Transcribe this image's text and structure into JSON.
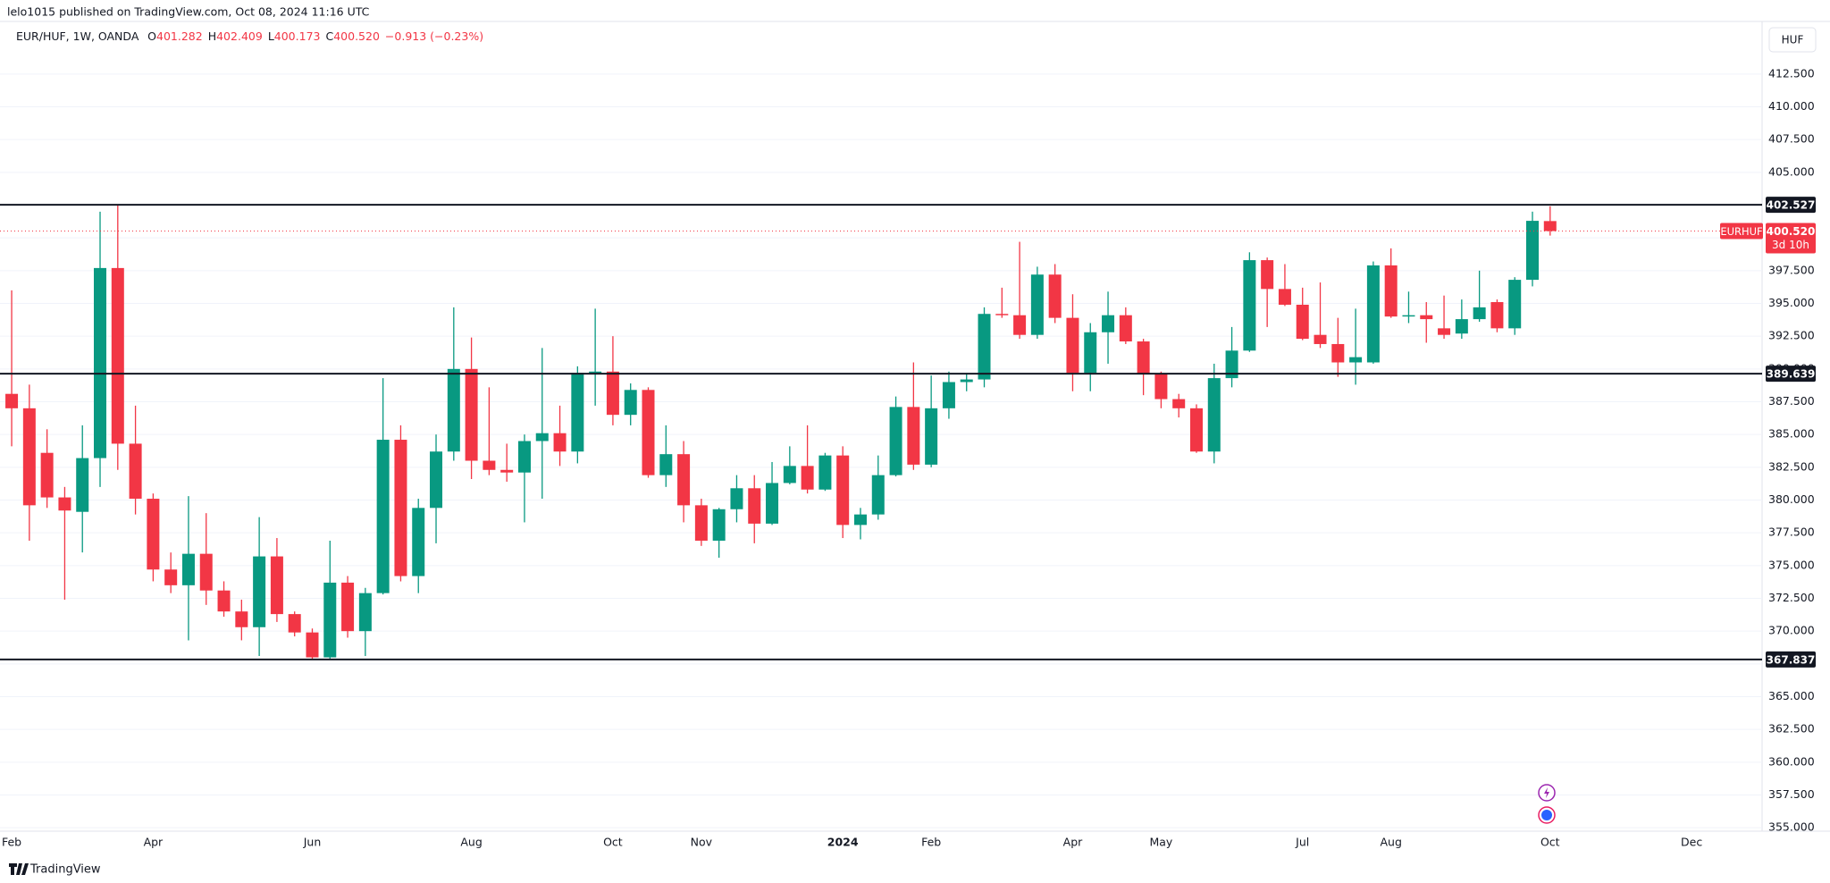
{
  "header": {
    "published": "lelo1015 published on TradingView.com, Oct 08, 2024 11:16 UTC",
    "currency_button": "HUF",
    "footer_brand": "TradingView"
  },
  "chart_data": {
    "type": "candlestick",
    "legend": {
      "symbol": "EUR/HUF, 1W, OANDA",
      "items": [
        {
          "key": "O",
          "value": "401.282"
        },
        {
          "key": "H",
          "value": "402.409"
        },
        {
          "key": "L",
          "value": "400.173"
        },
        {
          "key": "C",
          "value": "400.520"
        }
      ],
      "change": "−0.913 (−0.23%)"
    },
    "categories": [
      "Feb",
      null,
      null,
      null,
      null,
      null,
      null,
      null,
      "Apr",
      null,
      null,
      null,
      null,
      null,
      null,
      null,
      null,
      "Jun",
      null,
      null,
      null,
      null,
      null,
      null,
      null,
      null,
      "Aug",
      null,
      null,
      null,
      null,
      null,
      null,
      null,
      "Oct",
      null,
      null,
      null,
      null,
      "Nov",
      null,
      null,
      null,
      null,
      null,
      null,
      null,
      "2024",
      null,
      null,
      null,
      null,
      "Feb",
      null,
      null,
      null,
      null,
      null,
      null,
      null,
      "Apr",
      null,
      null,
      null,
      null,
      "May",
      null,
      null,
      null,
      null,
      null,
      null,
      null,
      "Jul",
      null,
      null,
      null,
      null,
      "Aug",
      null,
      null,
      null,
      null,
      null,
      null,
      null,
      null,
      "Oct",
      null,
      null,
      null,
      null,
      null,
      null,
      null,
      "Dec",
      null,
      null,
      null,
      null
    ],
    "open": [
      388.1,
      387.0,
      383.6,
      380.2,
      379.1,
      383.2,
      397.7,
      384.3,
      380.1,
      374.7,
      373.5,
      375.9,
      373.1,
      371.5,
      370.3,
      375.7,
      371.3,
      369.9,
      368.0,
      373.7,
      370.0,
      372.9,
      384.6,
      374.2,
      379.4,
      383.7,
      390.0,
      383.0,
      382.3,
      382.1,
      384.5,
      385.1,
      383.7,
      389.7,
      389.8,
      386.5,
      388.4,
      381.9,
      383.5,
      379.6,
      376.9,
      379.3,
      380.9,
      378.2,
      381.3,
      382.6,
      380.8,
      383.4,
      378.1,
      378.9,
      381.9,
      387.1,
      382.7,
      387.0,
      389.0,
      389.2,
      394.2,
      394.1,
      392.6,
      397.2,
      393.9,
      389.7,
      392.8,
      394.1,
      392.1,
      389.6,
      387.7,
      387.0,
      383.7,
      389.3,
      391.4,
      398.3,
      396.1,
      394.9,
      392.6,
      391.9,
      390.5,
      390.5,
      397.9,
      394.0,
      394.1,
      393.1,
      392.7,
      393.8,
      395.1,
      393.1,
      396.8,
      401.282,
      null,
      null,
      null,
      null,
      null,
      null,
      null,
      null,
      null,
      null,
      null,
      null
    ],
    "high": [
      396.0,
      388.8,
      385.4,
      381.0,
      385.7,
      402.0,
      402.5,
      387.2,
      380.5,
      376.0,
      380.3,
      379.0,
      373.8,
      372.4,
      378.7,
      377.1,
      371.5,
      370.2,
      376.9,
      374.2,
      373.3,
      389.3,
      385.7,
      380.1,
      385.0,
      394.7,
      392.4,
      388.6,
      384.3,
      385.0,
      391.6,
      387.2,
      390.2,
      394.6,
      392.5,
      388.9,
      388.6,
      385.7,
      384.5,
      380.1,
      379.4,
      381.9,
      381.9,
      382.9,
      384.1,
      385.7,
      383.6,
      384.1,
      379.4,
      383.4,
      387.9,
      390.5,
      389.5,
      389.8,
      389.7,
      394.7,
      396.2,
      399.7,
      397.8,
      398.0,
      395.7,
      393.5,
      395.9,
      394.7,
      392.3,
      389.8,
      388.1,
      387.3,
      390.4,
      393.2,
      398.9,
      398.5,
      398.0,
      396.2,
      396.6,
      393.9,
      394.6,
      398.2,
      399.2,
      395.9,
      395.1,
      395.6,
      395.3,
      397.5,
      395.3,
      397.0,
      402.0,
      402.409,
      null,
      null,
      null,
      null,
      null,
      null,
      null,
      null,
      null,
      null,
      null,
      null
    ],
    "low": [
      384.1,
      376.9,
      379.4,
      372.4,
      376.0,
      381.0,
      382.3,
      378.9,
      373.8,
      372.9,
      369.3,
      372.0,
      371.1,
      369.3,
      368.1,
      370.7,
      369.6,
      367.837,
      367.9,
      369.5,
      368.1,
      372.8,
      373.8,
      372.9,
      376.7,
      383.0,
      381.6,
      381.9,
      381.4,
      378.3,
      380.1,
      382.6,
      382.8,
      387.2,
      385.7,
      385.7,
      381.7,
      381.0,
      378.3,
      376.5,
      375.6,
      378.3,
      376.7,
      378.1,
      381.2,
      380.5,
      380.7,
      377.1,
      377.0,
      378.5,
      381.8,
      382.3,
      382.5,
      386.2,
      388.3,
      388.6,
      393.9,
      392.3,
      392.3,
      393.5,
      388.3,
      388.3,
      390.4,
      391.9,
      388.0,
      387.0,
      386.3,
      383.6,
      382.8,
      388.6,
      391.3,
      393.2,
      394.8,
      392.2,
      391.6,
      389.4,
      388.8,
      390.4,
      393.9,
      393.5,
      392.0,
      392.3,
      392.3,
      393.6,
      392.8,
      392.6,
      396.3,
      400.173,
      null,
      null,
      null,
      null,
      null,
      null,
      null,
      null,
      null,
      null,
      null,
      null
    ],
    "close": [
      387.0,
      379.6,
      380.2,
      379.2,
      383.2,
      397.7,
      384.3,
      380.1,
      374.7,
      373.5,
      375.9,
      373.1,
      371.5,
      370.3,
      375.7,
      371.3,
      369.9,
      368.0,
      373.7,
      370.0,
      372.9,
      384.6,
      374.2,
      379.4,
      383.7,
      390.0,
      383.0,
      382.3,
      382.1,
      384.5,
      385.1,
      383.7,
      389.7,
      389.8,
      386.5,
      388.4,
      381.9,
      383.5,
      379.6,
      376.9,
      379.3,
      380.9,
      378.2,
      381.3,
      382.6,
      380.8,
      383.4,
      378.1,
      378.9,
      381.9,
      387.1,
      382.7,
      387.0,
      389.0,
      389.2,
      394.2,
      394.1,
      392.6,
      397.2,
      393.9,
      389.7,
      392.8,
      394.1,
      392.1,
      389.6,
      387.7,
      387.0,
      383.7,
      389.3,
      391.4,
      398.3,
      396.1,
      394.9,
      392.3,
      391.9,
      390.5,
      390.9,
      397.9,
      394.0,
      394.1,
      393.8,
      392.6,
      393.8,
      394.7,
      393.1,
      396.8,
      401.3,
      400.52,
      null,
      null,
      null,
      null,
      null,
      null,
      null,
      null,
      null,
      null,
      null,
      null
    ],
    "up_color": "#089981",
    "down_color": "#f23645",
    "levels": [
      402.527,
      389.639,
      367.837
    ],
    "level_color": "#131722",
    "last_price": {
      "value": 400.52,
      "label": "400.520"
    },
    "symbol_tag": "EURHUF",
    "countdown": "3d 10h",
    "ylim": [
      354.74,
      416.51
    ],
    "yticks": [
      {
        "value": 355,
        "label": "355.000"
      },
      {
        "value": 357.5,
        "label": "357.500"
      },
      {
        "value": 360,
        "label": "360.000"
      },
      {
        "value": 362.5,
        "label": "362.500"
      },
      {
        "value": 365,
        "label": "365.000"
      },
      {
        "value": 367.5,
        "label": "367.500"
      },
      {
        "value": 370,
        "label": "370.000"
      },
      {
        "value": 372.5,
        "label": "372.500"
      },
      {
        "value": 375,
        "label": "375.000"
      },
      {
        "value": 377.5,
        "label": "377.500"
      },
      {
        "value": 380,
        "label": "380.000"
      },
      {
        "value": 382.5,
        "label": "382.500"
      },
      {
        "value": 385,
        "label": "385.000"
      },
      {
        "value": 387.5,
        "label": "387.500"
      },
      {
        "value": 390,
        "label": "390.000"
      },
      {
        "value": 392.5,
        "label": "392.500"
      },
      {
        "value": 395,
        "label": "395.000"
      },
      {
        "value": 397.5,
        "label": "397.500"
      },
      {
        "value": 400,
        "label": "400.000"
      },
      {
        "value": 402.5,
        "label": "402.500"
      },
      {
        "value": 405,
        "label": "405.000"
      },
      {
        "value": 407.5,
        "label": "407.500"
      },
      {
        "value": 410,
        "label": "410.000"
      },
      {
        "value": 412.5,
        "label": "412.500"
      }
    ],
    "grid": true
  }
}
